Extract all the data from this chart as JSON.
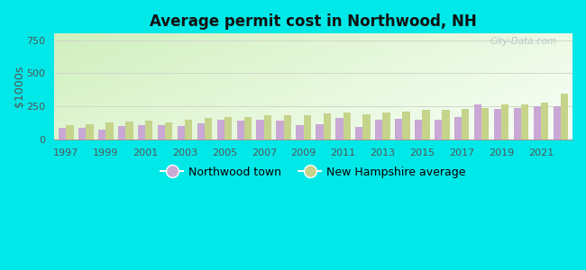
{
  "title": "Average permit cost in Northwood, NH",
  "ylabel": "$1000s",
  "background_outer": "#00e8e8",
  "years": [
    1997,
    1998,
    1999,
    2000,
    2001,
    2002,
    2003,
    2004,
    2005,
    2006,
    2007,
    2008,
    2009,
    2010,
    2011,
    2012,
    2013,
    2014,
    2015,
    2016,
    2017,
    2018,
    2019,
    2020,
    2021,
    2022
  ],
  "northwood": [
    90,
    88,
    78,
    100,
    110,
    108,
    100,
    120,
    148,
    140,
    152,
    140,
    108,
    118,
    162,
    92,
    152,
    158,
    152,
    150,
    168,
    262,
    232,
    238,
    252,
    250
  ],
  "nh_avg": [
    112,
    118,
    128,
    138,
    142,
    132,
    148,
    162,
    172,
    172,
    182,
    182,
    182,
    198,
    202,
    192,
    202,
    212,
    222,
    222,
    228,
    238,
    262,
    268,
    278,
    348
  ],
  "color_northwood": "#c9a8d5",
  "color_nh": "#c5d48a",
  "ylim": [
    0,
    800
  ],
  "yticks": [
    0,
    250,
    500,
    750
  ],
  "grid_color": "#d0d8c8",
  "watermark": "City-Data.com",
  "legend_northwood": "Northwood town",
  "legend_nh": "New Hampshire average"
}
